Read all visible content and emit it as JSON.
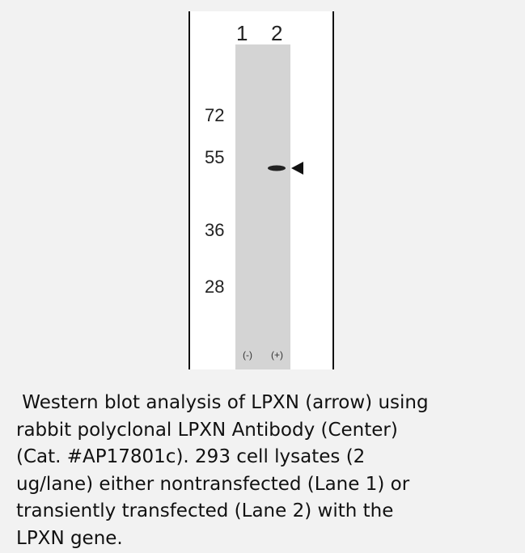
{
  "blot": {
    "lanes": [
      "1",
      "2"
    ],
    "markers": [
      "72",
      "55",
      "36",
      "28"
    ],
    "signs": [
      "(-)",
      "(+)"
    ]
  },
  "caption": {
    "lines": [
      " Western blot analysis of LPXN (arrow) using",
      "rabbit polyclonal LPXN Antibody (Center)",
      "(Cat. #AP17801c). 293 cell lysates (2",
      "ug/lane) either nontransfected (Lane 1) or",
      "transiently transfected (Lane 2) with the",
      "LPXN gene."
    ]
  }
}
